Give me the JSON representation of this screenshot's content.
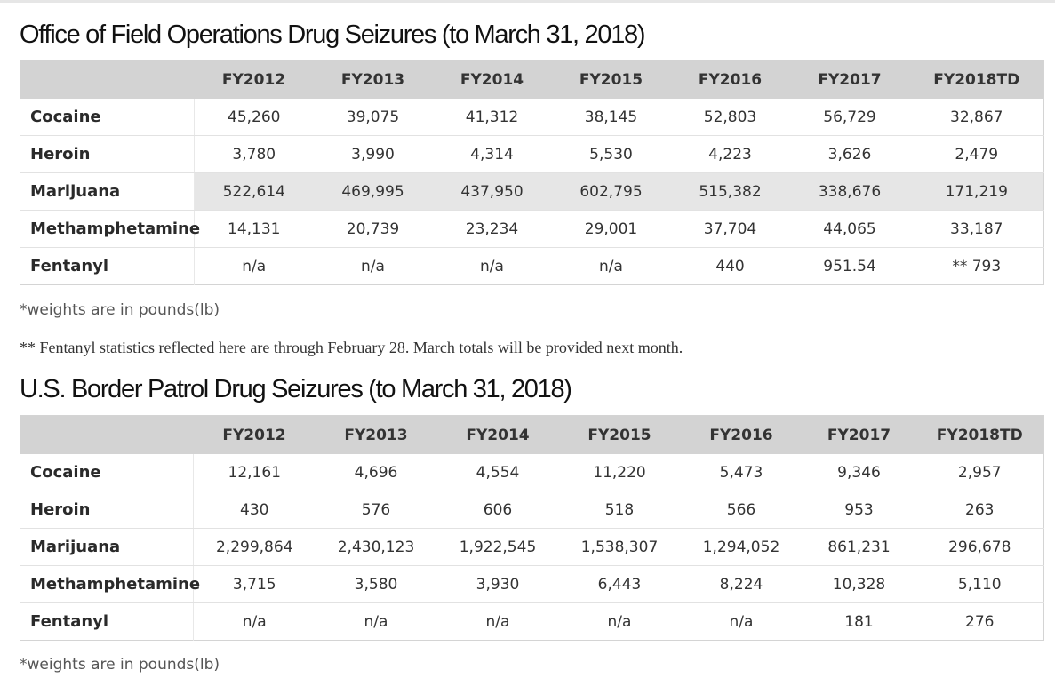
{
  "sections": [
    {
      "title": "Office of Field Operations Drug Seizures (to March 31, 2018)",
      "columns": [
        "",
        "FY2012",
        "FY2013",
        "FY2014",
        "FY2015",
        "FY2016",
        "FY2017",
        "FY2018TD"
      ],
      "rows": [
        {
          "label": "Cocaine",
          "values": [
            "45,260",
            "39,075",
            "41,312",
            "38,145",
            "52,803",
            "56,729",
            "32,867"
          ]
        },
        {
          "label": "Heroin",
          "values": [
            "3,780",
            "3,990",
            "4,314",
            "5,530",
            "4,223",
            "3,626",
            "2,479"
          ]
        },
        {
          "label": "Marijuana",
          "values": [
            "522,614",
            "469,995",
            "437,950",
            "602,795",
            "515,382",
            "338,676",
            "171,219"
          ]
        },
        {
          "label": "Methamphetamine",
          "values": [
            "14,131",
            "20,739",
            "23,234",
            "29,001",
            "37,704",
            "44,065",
            "33,187"
          ]
        },
        {
          "label": "Fentanyl",
          "values": [
            "n/a",
            "n/a",
            "n/a",
            "n/a",
            "440",
            "951.54",
            "** 793"
          ]
        }
      ],
      "note_weights": "*weights are in pounds(lb)",
      "note_fentanyl": "** Fentanyl statistics reflected here are through February 28.  March totals will be provided next month."
    },
    {
      "title": "U.S. Border Patrol Drug Seizures (to March 31, 2018)",
      "columns": [
        "",
        "FY2012",
        "FY2013",
        "FY2014",
        "FY2015",
        "FY2016",
        "FY2017",
        "FY2018TD"
      ],
      "rows": [
        {
          "label": "Cocaine",
          "values": [
            "12,161",
            "4,696",
            "4,554",
            "11,220",
            "5,473",
            "9,346",
            "2,957"
          ]
        },
        {
          "label": "Heroin",
          "values": [
            "430",
            "576",
            "606",
            "518",
            "566",
            "953",
            "263"
          ]
        },
        {
          "label": "Marijuana",
          "values": [
            "2,299,864",
            "2,430,123",
            "1,922,545",
            "1,538,307",
            "1,294,052",
            "861,231",
            "296,678"
          ]
        },
        {
          "label": "Methamphetamine",
          "values": [
            "3,715",
            "3,580",
            "3,930",
            "6,443",
            "8,224",
            "10,328",
            "5,110"
          ]
        },
        {
          "label": "Fentanyl",
          "values": [
            "n/a",
            "n/a",
            "n/a",
            "n/a",
            "n/a",
            "181",
            "276"
          ]
        }
      ],
      "note_weights": "*weights are in pounds(lb)"
    }
  ]
}
